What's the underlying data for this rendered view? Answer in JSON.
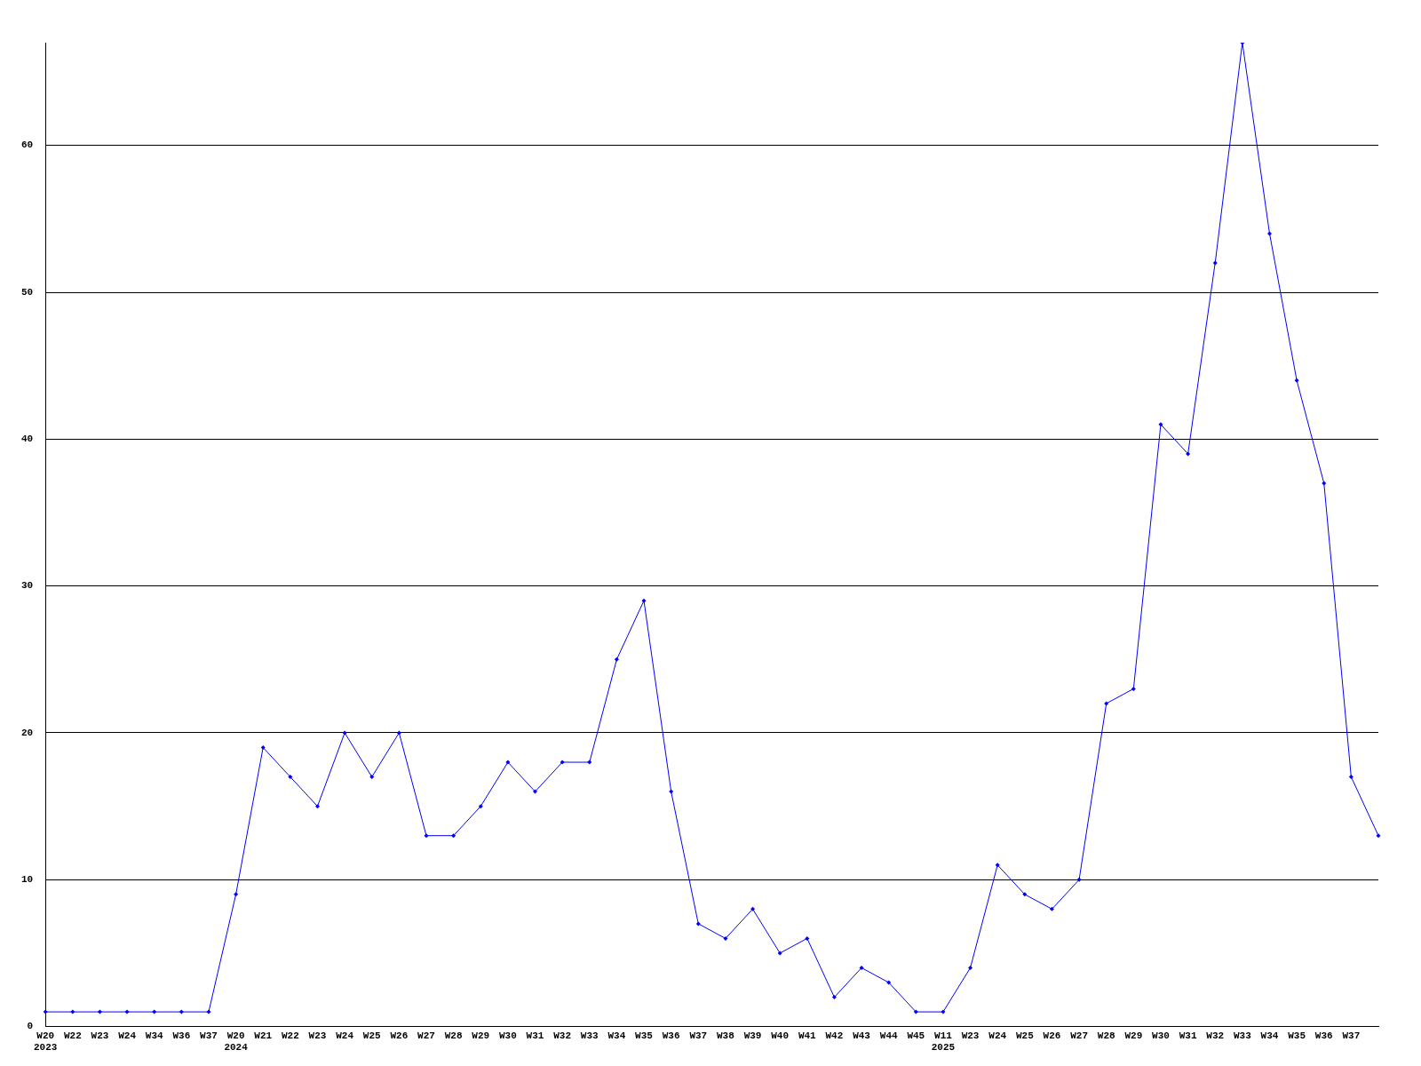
{
  "chart_data": {
    "type": "line",
    "categories": [
      "W20\n2023",
      "W22",
      "W23",
      "W24",
      "W34",
      "W36",
      "W37",
      "W20\n2024",
      "W21",
      "W22",
      "W23",
      "W24",
      "W25",
      "W26",
      "W27",
      "W28",
      "W29",
      "W30",
      "W31",
      "W32",
      "W33",
      "W34",
      "W35",
      "W36",
      "W37",
      "W38",
      "W39",
      "W40",
      "W41",
      "W42",
      "W43",
      "W44",
      "W45",
      "W11\n2025",
      "W23",
      "W24",
      "W25",
      "W26",
      "W27",
      "W28",
      "W29",
      "W30",
      "W31",
      "W32",
      "W33",
      "W34",
      "W35",
      "W36",
      "W37",
      null
    ],
    "series": [
      {
        "color": "#0000ff",
        "values": [
          1,
          1,
          1,
          1,
          1,
          1,
          1,
          9,
          19,
          17,
          15,
          20,
          17,
          20,
          13,
          13,
          15,
          18,
          16,
          18,
          18,
          25,
          29,
          16,
          7,
          6,
          8,
          5,
          6,
          2,
          4,
          3,
          1,
          1,
          4,
          11,
          9,
          8,
          10,
          22,
          23,
          41,
          39,
          52,
          67,
          54,
          44,
          37,
          17,
          13
        ]
      }
    ],
    "ylim": [
      0,
      67
    ],
    "yticks": [
      0,
      10,
      20,
      30,
      40,
      50,
      60
    ],
    "grid": "y",
    "legend": false,
    "marker": "diamond",
    "line_style": "solid"
  }
}
